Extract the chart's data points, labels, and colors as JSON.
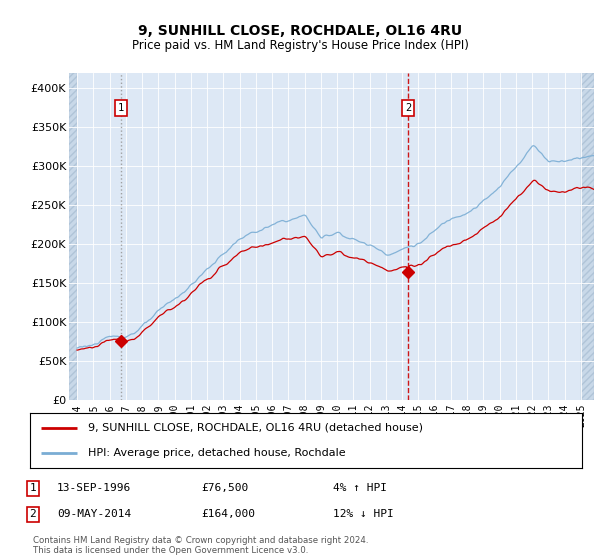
{
  "title": "9, SUNHILL CLOSE, ROCHDALE, OL16 4RU",
  "subtitle": "Price paid vs. HM Land Registry's House Price Index (HPI)",
  "hpi_label": "HPI: Average price, detached house, Rochdale",
  "property_label": "9, SUNHILL CLOSE, ROCHDALE, OL16 4RU (detached house)",
  "footer": "Contains HM Land Registry data © Crown copyright and database right 2024.\nThis data is licensed under the Open Government Licence v3.0.",
  "sale1": {
    "date_num": 1996.71,
    "price": 76500
  },
  "sale2": {
    "date_num": 2014.36,
    "price": 164000
  },
  "hpi_color": "#7aadd4",
  "property_color": "#cc0000",
  "sale1_vline_color": "#aaaaaa",
  "sale2_vline_color": "#cc0000",
  "bg_color": "#dde8f5",
  "hatch_bg_color": "#c8d8e8",
  "ylim": [
    0,
    420000
  ],
  "xlim": [
    1993.5,
    2025.8
  ],
  "yticks": [
    0,
    50000,
    100000,
    150000,
    200000,
    250000,
    300000,
    350000,
    400000
  ],
  "ytick_labels": [
    "£0",
    "£50K",
    "£100K",
    "£150K",
    "£200K",
    "£250K",
    "£300K",
    "£350K",
    "£400K"
  ],
  "xticks": [
    1994,
    1995,
    1996,
    1997,
    1998,
    1999,
    2000,
    2001,
    2002,
    2003,
    2004,
    2005,
    2006,
    2007,
    2008,
    2009,
    2010,
    2011,
    2012,
    2013,
    2014,
    2015,
    2016,
    2017,
    2018,
    2019,
    2020,
    2021,
    2022,
    2023,
    2024,
    2025
  ],
  "box_color": "#cc0000",
  "legend_line1_color": "#cc0000",
  "legend_line2_color": "#7aadd4"
}
